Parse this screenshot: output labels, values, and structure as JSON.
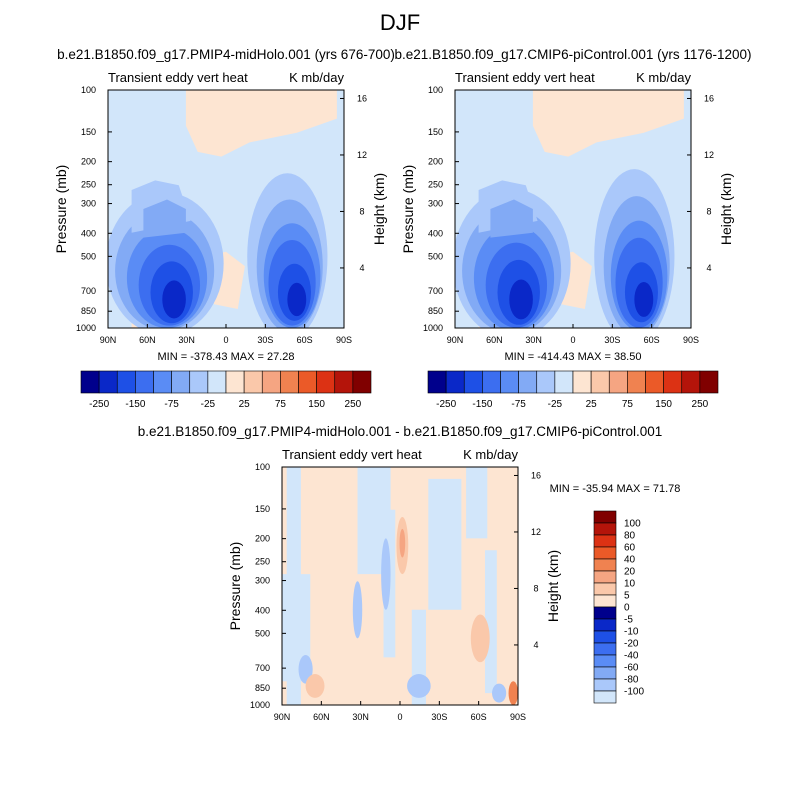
{
  "page_title": "DJF",
  "colors": {
    "neg": [
      "#00008c",
      "#0a28c8",
      "#1e50e6",
      "#3c6ef0",
      "#5a8cf5",
      "#82aaf5",
      "#aac8fa",
      "#d2e6fa"
    ],
    "pos": [
      "#fde5d2",
      "#fac8aa",
      "#f5a582",
      "#f08250",
      "#eb5a28",
      "#dc3214",
      "#b4140a",
      "#800000"
    ]
  },
  "chart_data": [
    {
      "type": "heatmap",
      "title": "b.e21.B1850.f09_g17.PMIP4-midHolo.001 (yrs 676-700)",
      "left_label": "Transient eddy vert heat",
      "right_label": "K mb/day",
      "ylabel": "Pressure (mb)",
      "y2label": "Height (km)",
      "xticks": [
        "90N",
        "60N",
        "30N",
        "0",
        "30S",
        "60S",
        "90S"
      ],
      "yticks": [
        100,
        150,
        200,
        250,
        300,
        400,
        500,
        700,
        850,
        1000
      ],
      "y2ticks": [
        16,
        12,
        8,
        4
      ],
      "min": -378.43,
      "max": 27.28,
      "minmax_text": "MIN = -378.43  MAX =  27.28",
      "colorbar_levels": [
        "-250",
        "-150",
        "-75",
        "-25",
        "25",
        "75",
        "150",
        "250"
      ]
    },
    {
      "type": "heatmap",
      "title": "b.e21.B1850.f09_g17.CMIP6-piControl.001 (yrs 1176-1200)",
      "left_label": "Transient eddy vert heat",
      "right_label": "K mb/day",
      "ylabel": "Pressure (mb)",
      "y2label": "Height (km)",
      "xticks": [
        "90N",
        "60N",
        "30N",
        "0",
        "30S",
        "60S",
        "90S"
      ],
      "yticks": [
        100,
        150,
        200,
        250,
        300,
        400,
        500,
        700,
        850,
        1000
      ],
      "y2ticks": [
        16,
        12,
        8,
        4
      ],
      "min": -414.43,
      "max": 38.5,
      "minmax_text": "MIN = -414.43  MAX =  38.50",
      "colorbar_levels": [
        "-250",
        "-150",
        "-75",
        "-25",
        "25",
        "75",
        "150",
        "250"
      ]
    },
    {
      "type": "heatmap",
      "title": "b.e21.B1850.f09_g17.PMIP4-midHolo.001 - b.e21.B1850.f09_g17.CMIP6-piControl.001",
      "left_label": "Transient eddy vert heat",
      "right_label": "K mb/day",
      "ylabel": "Pressure (mb)",
      "y2label": "Height (km)",
      "xticks": [
        "90N",
        "60N",
        "30N",
        "0",
        "30S",
        "60S",
        "90S"
      ],
      "yticks": [
        100,
        150,
        200,
        250,
        300,
        400,
        500,
        700,
        850,
        1000
      ],
      "y2ticks": [
        16,
        12,
        8,
        4
      ],
      "min": -35.94,
      "max": 71.78,
      "minmax_text": "MIN = -35.94  MAX =  71.78",
      "colorbar_levels": [
        "100",
        "80",
        "60",
        "40",
        "20",
        "10",
        "5",
        "0",
        "-5",
        "-10",
        "-20",
        "-40",
        "-60",
        "-80",
        "-100"
      ]
    }
  ]
}
